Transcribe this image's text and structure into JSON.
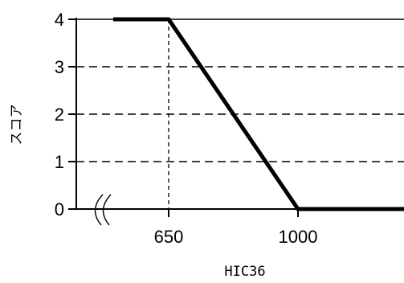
{
  "chart_data": {
    "type": "line",
    "xlabel": "HIC36",
    "ylabel": "スコア",
    "x_axis_break": true,
    "x_ticks": [
      "650",
      "1000"
    ],
    "y_ticks": [
      "0",
      "1",
      "2",
      "3",
      "4"
    ],
    "ylim": [
      0,
      4
    ],
    "grid": "horizontal dashed",
    "reference_lines": [
      {
        "axis": "x",
        "value": 650,
        "style": "dashed"
      }
    ],
    "series": [
      {
        "x": [
          500,
          650,
          1000,
          1300
        ],
        "y": [
          4,
          4,
          0,
          0
        ]
      }
    ]
  }
}
